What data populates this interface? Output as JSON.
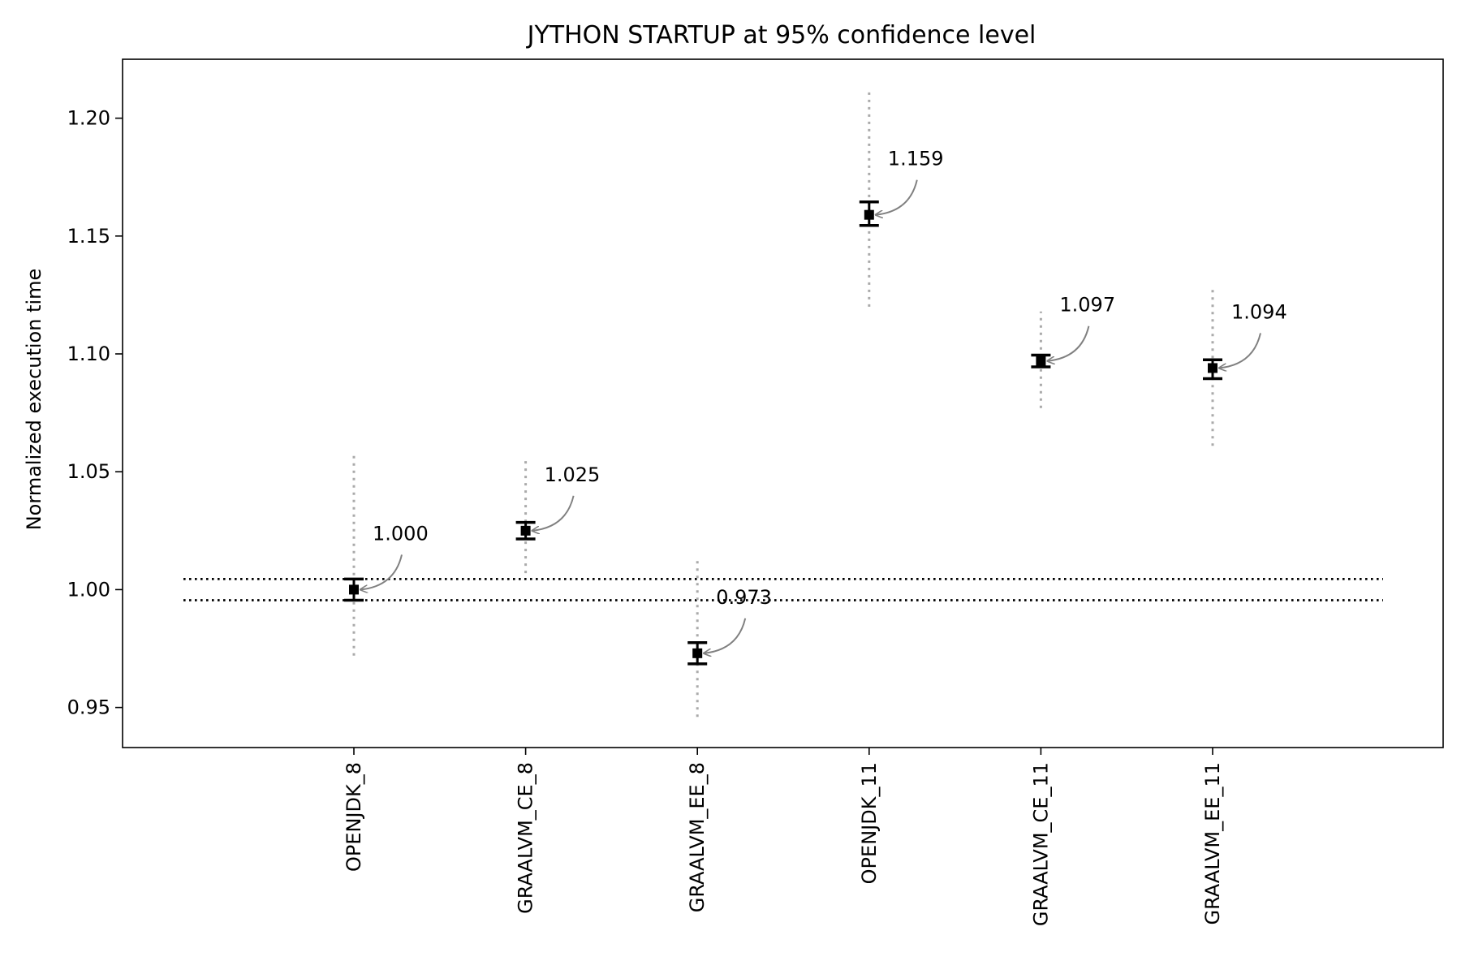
{
  "chart_data": {
    "type": "errorbar",
    "title": "JYTHON STARTUP at 95% confidence level",
    "xlabel": "",
    "ylabel": "Normalized execution time",
    "ylim": [
      0.933,
      1.225
    ],
    "yticks": [
      "0.95",
      "1.00",
      "1.05",
      "1.10",
      "1.15",
      "1.20"
    ],
    "grid": false,
    "categories": [
      "OPENJDK_8",
      "GRAALVM_CE_8",
      "GRAALVM_EE_8",
      "OPENJDK_11",
      "GRAALVM_CE_11",
      "GRAALVM_EE_11"
    ],
    "series": [
      {
        "values": [
          1.0,
          1.025,
          0.973,
          1.159,
          1.097,
          1.094
        ],
        "labels": [
          "1.000",
          "1.025",
          "0.973",
          "1.159",
          "1.097",
          "1.094"
        ],
        "ci_low": [
          0.9955,
          1.0215,
          0.9685,
          1.1545,
          1.0945,
          1.0895
        ],
        "ci_high": [
          1.0045,
          1.0285,
          0.9775,
          1.1645,
          1.0995,
          1.0975
        ],
        "range_low": [
          0.972,
          1.007,
          0.946,
          1.12,
          1.077,
          1.061
        ],
        "range_high": [
          1.058,
          1.056,
          1.014,
          1.212,
          1.118,
          1.128
        ]
      }
    ],
    "reference_lines": [
      0.9955,
      1.0045
    ],
    "colors": {
      "point": "#000000",
      "range": "#aaaaaa",
      "arrow": "#808080",
      "reference": "#000000"
    }
  }
}
